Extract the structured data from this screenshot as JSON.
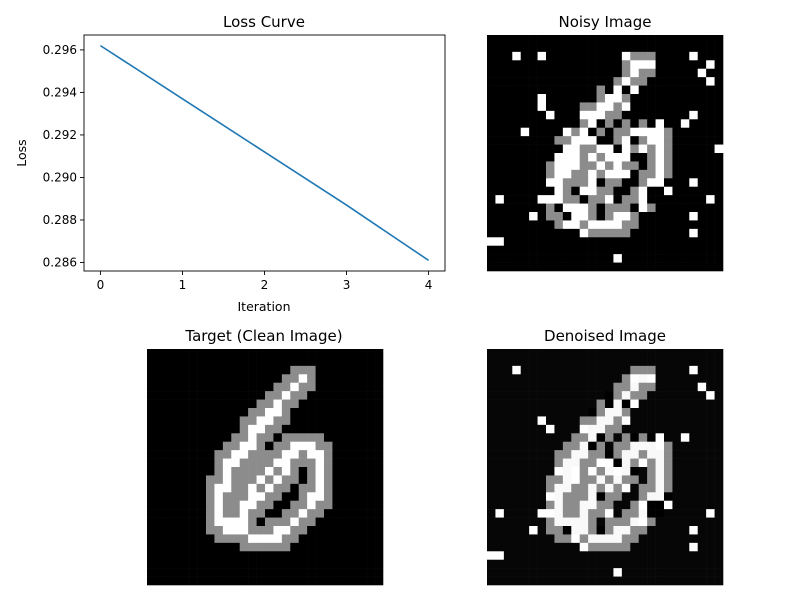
{
  "panels": {
    "noisy": {
      "title": "Noisy Image"
    },
    "target": {
      "title": "Target (Clean Image)"
    },
    "denoised": {
      "title": "Denoised Image"
    }
  },
  "chart_data": [
    {
      "type": "line",
      "title": "Loss Curve",
      "xlabel": "Iteration",
      "ylabel": "Loss",
      "x": [
        0,
        1,
        2,
        3,
        4
      ],
      "series": [
        {
          "values": [
            0.2962,
            0.2937,
            0.2912,
            0.2887,
            0.2861
          ],
          "color": "#1f77b4"
        }
      ],
      "xlim": [
        -0.2,
        4.2
      ],
      "ylim": [
        0.2856,
        0.2967
      ],
      "xticks": [
        0,
        1,
        2,
        3,
        4
      ],
      "yticks": [
        0.286,
        0.288,
        0.29,
        0.292,
        0.294,
        0.296
      ],
      "ytick_labels": [
        "0.286",
        "0.288",
        "0.290",
        "0.292",
        "0.294",
        "0.296"
      ],
      "grid": false
    }
  ]
}
